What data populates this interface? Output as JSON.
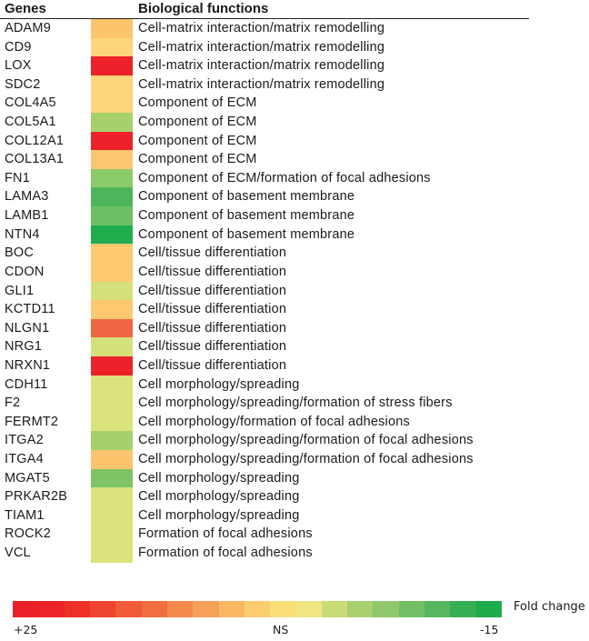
{
  "chart_data": {
    "type": "heatmap",
    "title": "",
    "columns": [
      "Genes",
      "Biological functions"
    ],
    "rows": [
      {
        "gene": "ADAM9",
        "function": "Cell-matrix interaction/matrix remodelling",
        "color": "#fcc46c"
      },
      {
        "gene": "CD9",
        "function": "Cell-matrix interaction/matrix remodelling",
        "color": "#fdd57a"
      },
      {
        "gene": "LOX",
        "function": "Cell-matrix interaction/matrix remodelling",
        "color": "#ec2129"
      },
      {
        "gene": "SDC2",
        "function": "Cell-matrix interaction/matrix remodelling",
        "color": "#fdd57a"
      },
      {
        "gene": "COL4A5",
        "function": "Component of ECM",
        "color": "#fdd57a"
      },
      {
        "gene": "COL5A1",
        "function": "Component of ECM",
        "color": "#a6d06c"
      },
      {
        "gene": "COL12A1",
        "function": "Component of ECM",
        "color": "#ec2129"
      },
      {
        "gene": "COL13A1",
        "function": "Component of ECM",
        "color": "#fcc670"
      },
      {
        "gene": "FN1",
        "function": "Component of ECM/formation of focal adhesions",
        "color": "#8ccb6a"
      },
      {
        "gene": "LAMA3",
        "function": "Component of basement membrane",
        "color": "#4db65c"
      },
      {
        "gene": "LAMB1",
        "function": "Component of basement membrane",
        "color": "#6ebf63"
      },
      {
        "gene": "NTN4",
        "function": "Component of basement membrane",
        "color": "#20ad4e"
      },
      {
        "gene": "BOC",
        "function": "Cell/tissue differentiation",
        "color": "#fcc870"
      },
      {
        "gene": "CDON",
        "function": "Cell/tissue differentiation",
        "color": "#fcc870"
      },
      {
        "gene": "GLI1",
        "function": "Cell/tissue differentiation",
        "color": "#d6e07a"
      },
      {
        "gene": "KCTD11",
        "function": "Cell/tissue differentiation",
        "color": "#fcc870"
      },
      {
        "gene": "NLGN1",
        "function": "Cell/tissue differentiation",
        "color": "#ef6541"
      },
      {
        "gene": "NRG1",
        "function": "Cell/tissue differentiation",
        "color": "#d6e07a"
      },
      {
        "gene": "NRXN1",
        "function": "Cell/tissue differentiation",
        "color": "#ec2129"
      },
      {
        "gene": "CDH11",
        "function": "Cell morphology/spreading",
        "color": "#dbe27c"
      },
      {
        "gene": "F2",
        "function": "Cell morphology/spreading/formation of stress fibers",
        "color": "#dbe27c"
      },
      {
        "gene": "FERMT2",
        "function": "Cell morphology/formation of focal adhesions",
        "color": "#dbe27c"
      },
      {
        "gene": "ITGA2",
        "function": "Cell morphology/spreading/formation of focal adhesions",
        "color": "#a6d06c"
      },
      {
        "gene": "ITGA4",
        "function": "Cell morphology/spreading/formation of focal adhesions",
        "color": "#fcc46c"
      },
      {
        "gene": "MGAT5",
        "function": "Cell morphology/spreading",
        "color": "#7dc465"
      },
      {
        "gene": "PRKAR2B",
        "function": "Cell morphology/spreading",
        "color": "#dbe27c"
      },
      {
        "gene": "TIAM1",
        "function": "Cell morphology/spreading",
        "color": "#dbe27c"
      },
      {
        "gene": "ROCK2",
        "function": "Formation of focal adhesions",
        "color": "#dbe27c"
      },
      {
        "gene": "VCL",
        "function": "Formation of focal adhesions",
        "color": "#dbe27c"
      }
    ],
    "legend": {
      "title": "Fold change",
      "min_label": "+25",
      "mid_label": "NS",
      "max_label": "-15",
      "colors": [
        "#ec2028",
        "#ec2327",
        "#ed3127",
        "#ee4530",
        "#f05b38",
        "#f16f3f",
        "#f48a4c",
        "#f6a15a",
        "#fab864",
        "#fccd6f",
        "#fbe07a",
        "#f0e681",
        "#c8dc78",
        "#a9d06f",
        "#8fc86b",
        "#71bf65",
        "#56b760",
        "#36af54",
        "#1dab4c"
      ]
    }
  },
  "header": {
    "genes_label": "Genes",
    "functions_label": "Biological functions"
  }
}
